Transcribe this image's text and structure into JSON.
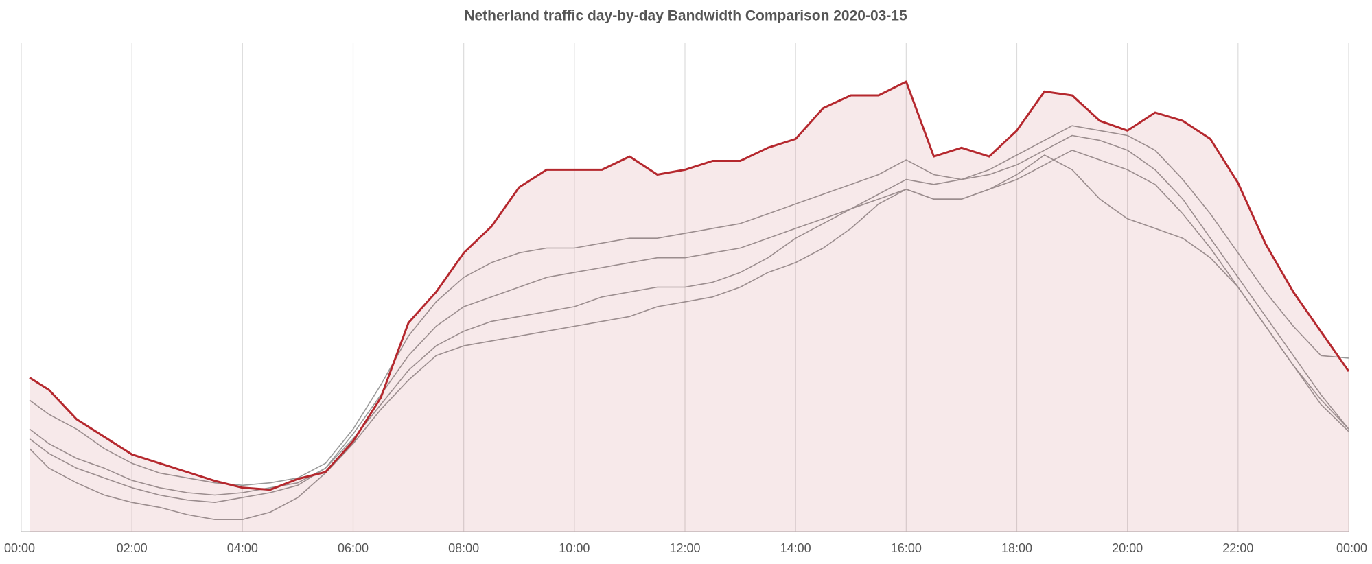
{
  "chart_data": {
    "type": "line",
    "title": "Netherland traffic day-by-day Bandwidth Comparison 2020-03-15",
    "x": [
      0.15,
      0.5,
      1,
      1.5,
      2,
      2.5,
      3,
      3.5,
      4,
      4.5,
      5,
      5.5,
      6,
      6.5,
      7,
      7.5,
      8,
      8.5,
      9,
      9.5,
      10,
      10.5,
      11,
      11.5,
      12,
      12.5,
      13,
      13.5,
      14,
      14.5,
      15,
      15.5,
      16,
      16.5,
      17,
      17.5,
      18,
      18.5,
      19,
      19.5,
      20,
      20.5,
      21,
      21.5,
      22,
      22.5,
      23,
      23.5,
      24
    ],
    "series": [
      {
        "color": "#999999",
        "values": [
          26.9,
          24,
          21,
          17,
          14,
          12,
          11,
          10,
          9.5,
          10,
          11,
          14,
          21,
          30,
          40,
          47,
          52,
          55,
          57,
          58,
          58,
          59,
          60,
          60,
          61,
          62,
          63,
          65,
          67,
          69,
          71,
          73,
          76,
          73,
          72,
          74,
          77,
          80,
          83,
          82,
          81,
          78,
          72,
          65,
          57,
          49,
          42,
          36,
          35.5
        ]
      },
      {
        "color": "#999999",
        "values": [
          21,
          18,
          15,
          13,
          10.5,
          9,
          8,
          7.5,
          8,
          9,
          10,
          13,
          20,
          28,
          36,
          42,
          46,
          48,
          50,
          52,
          53,
          54,
          55,
          56,
          56,
          57,
          58,
          60,
          62,
          64,
          66,
          69,
          72,
          71,
          72,
          73,
          75,
          78,
          81,
          80,
          78,
          74,
          68,
          60,
          52,
          44,
          36,
          28,
          21
        ]
      },
      {
        "color": "#999999",
        "values": [
          19,
          16,
          13,
          11,
          9,
          7.5,
          6.5,
          6,
          7,
          8,
          9.5,
          13,
          19,
          26,
          33,
          38,
          41,
          43,
          44,
          45,
          46,
          48,
          49,
          50,
          50,
          51,
          53,
          56,
          60,
          63,
          66,
          68,
          70,
          68,
          68,
          70,
          72,
          75,
          78,
          76,
          74,
          71,
          65,
          58,
          50,
          42,
          34,
          26,
          20.5
        ]
      },
      {
        "color": "#999999",
        "values": [
          17,
          13,
          10,
          7.5,
          6,
          5,
          3.5,
          2.5,
          2.5,
          4,
          7,
          12,
          18,
          25,
          31,
          36,
          38,
          39,
          40,
          41,
          42,
          43,
          44,
          46,
          47,
          48,
          50,
          53,
          55,
          58,
          62,
          67,
          70,
          68,
          68,
          70,
          73,
          77,
          74,
          68,
          64,
          62,
          60,
          56,
          50,
          42,
          34,
          27,
          21
        ]
      },
      {
        "color": "#b5282e",
        "fill": true,
        "values": [
          31.5,
          29,
          23,
          19.4,
          15.8,
          14,
          12.2,
          10.4,
          9,
          8.6,
          10.8,
          12.2,
          18.5,
          27.4,
          42.7,
          49,
          57,
          62.4,
          70.4,
          74,
          74,
          74,
          76.7,
          73,
          74,
          75.8,
          75.8,
          78.5,
          80.3,
          86.6,
          89.2,
          89.2,
          92,
          76.7,
          78.5,
          76.7,
          82,
          90,
          89.2,
          84,
          82,
          85.7,
          84,
          80.3,
          71.3,
          58.8,
          49,
          40.9,
          32.8
        ]
      }
    ],
    "xlim": [
      0,
      24
    ],
    "xticks": [
      {
        "value": 0,
        "label": "00:00"
      },
      {
        "value": 2,
        "label": "02:00"
      },
      {
        "value": 4,
        "label": "04:00"
      },
      {
        "value": 6,
        "label": "06:00"
      },
      {
        "value": 8,
        "label": "08:00"
      },
      {
        "value": 10,
        "label": "10:00"
      },
      {
        "value": 12,
        "label": "12:00"
      },
      {
        "value": 14,
        "label": "14:00"
      },
      {
        "value": 16,
        "label": "16:00"
      },
      {
        "value": 18,
        "label": "18:00"
      },
      {
        "value": 20,
        "label": "20:00"
      },
      {
        "value": 22,
        "label": "22:00"
      },
      {
        "value": 24,
        "label": "00:00"
      }
    ],
    "ylim": [
      0,
      100
    ],
    "grid": true
  }
}
